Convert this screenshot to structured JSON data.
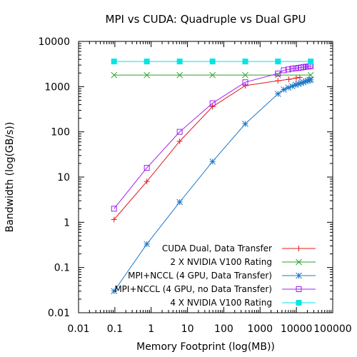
{
  "chart_data": {
    "type": "line",
    "title": "MPI vs CUDA: Quadruple vs Dual GPU",
    "xlabel": "Memory Footprint (log(MB))",
    "ylabel": "Bandwidth (log(GB/s))",
    "x_scale": "log",
    "y_scale": "log",
    "xlim": [
      0.01,
      100000
    ],
    "ylim": [
      0.01,
      10000
    ],
    "x_ticks": [
      {
        "value": 0.01,
        "label": "0.01"
      },
      {
        "value": 0.1,
        "label": "0.1"
      },
      {
        "value": 1,
        "label": "1"
      },
      {
        "value": 10,
        "label": "10"
      },
      {
        "value": 100,
        "label": "100"
      },
      {
        "value": 1000,
        "label": "1000"
      },
      {
        "value": 10000,
        "label": "10000"
      },
      {
        "value": 100000,
        "label": "100000"
      }
    ],
    "y_ticks": [
      {
        "value": 0.01,
        "label": "0.01"
      },
      {
        "value": 0.1,
        "label": "0.1"
      },
      {
        "value": 1,
        "label": "1"
      },
      {
        "value": 10,
        "label": "10"
      },
      {
        "value": 100,
        "label": "100"
      },
      {
        "value": 1000,
        "label": "1000"
      },
      {
        "value": 10000,
        "label": "10000"
      }
    ],
    "grid": false,
    "legend_position": "bottom-right",
    "series": [
      {
        "name": "CUDA Dual, Data Transfer",
        "color": "#e31a1c",
        "marker": "plus",
        "x": [
          0.095,
          0.76,
          6.1,
          49,
          390,
          3100,
          6200,
          9900,
          12400
        ],
        "y": [
          1.15,
          8.0,
          62,
          360,
          1050,
          1350,
          1450,
          1550,
          1600
        ]
      },
      {
        "name": "2 X NVIDIA V100 Rating",
        "color": "#2ca02c",
        "marker": "cross",
        "x": [
          0.095,
          0.76,
          6.1,
          49,
          390,
          3100,
          24800
        ],
        "y": [
          1800,
          1800,
          1800,
          1800,
          1800,
          1800,
          1800
        ]
      },
      {
        "name": "MPI+NCCL (4 GPU, Data Transfer)",
        "color": "#1f78c8",
        "marker": "star",
        "x": [
          0.095,
          0.76,
          6.1,
          49,
          390,
          3100,
          4500,
          6000,
          7700,
          9500,
          11400,
          13500,
          15700,
          18000,
          20500,
          23000,
          24800
        ],
        "y": [
          0.03,
          0.33,
          2.8,
          22,
          150,
          690,
          860,
          950,
          1020,
          1100,
          1150,
          1200,
          1250,
          1310,
          1360,
          1400,
          1420
        ]
      },
      {
        "name": "MPI+NCCL (4 GPU, no Data Transfer)",
        "color": "#a020f0",
        "marker": "square-open",
        "x": [
          0.095,
          0.76,
          6.1,
          49,
          390,
          3100,
          4500,
          6000,
          7700,
          9500,
          11400,
          13500,
          15700,
          18000,
          20500,
          23000,
          24800
        ],
        "y": [
          2.0,
          16,
          100,
          430,
          1250,
          1950,
          2300,
          2400,
          2500,
          2550,
          2600,
          2650,
          2700,
          2750,
          2780,
          2800,
          2850
        ]
      },
      {
        "name": "4 X NVIDIA V100 Rating",
        "color": "#00e5e5",
        "marker": "square-filled",
        "x": [
          0.095,
          0.76,
          6.1,
          49,
          390,
          3100,
          24800
        ],
        "y": [
          3600,
          3600,
          3600,
          3600,
          3600,
          3600,
          3600
        ]
      }
    ]
  }
}
